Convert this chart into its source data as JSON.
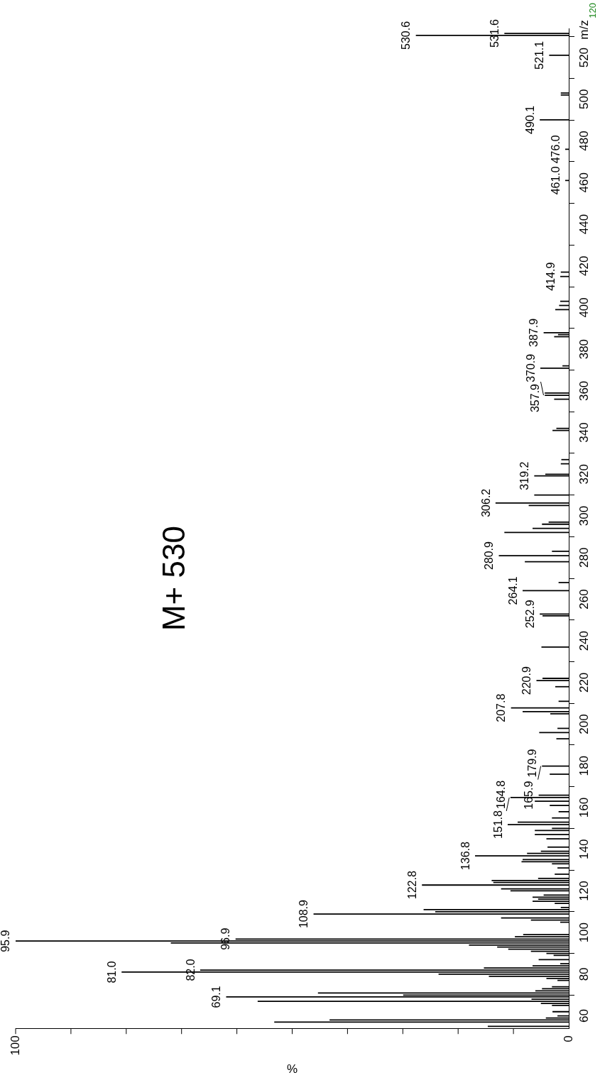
{
  "chart_data": {
    "type": "bar",
    "orientation": "horizontal",
    "color": "#000000",
    "x": [
      55,
      57,
      58,
      59,
      60,
      62,
      65,
      66,
      67,
      68,
      69.1,
      70,
      71,
      72,
      73,
      74,
      77,
      78,
      79,
      80,
      81.0,
      82.0,
      83,
      84,
      85,
      87,
      89,
      90,
      91,
      92,
      93,
      94,
      95,
      95.9,
      96.9,
      98,
      99,
      105,
      106,
      107,
      108.9,
      110,
      111,
      112,
      114,
      115,
      116,
      117,
      118,
      120,
      121,
      122.8,
      124,
      125,
      126,
      128,
      131,
      133,
      134,
      135,
      136.8,
      138,
      139,
      141,
      145,
      147,
      149,
      150,
      151.8,
      153,
      155,
      158,
      161,
      163,
      164.8,
      165.9,
      176,
      179.9,
      193,
      196,
      198,
      205,
      206,
      207.8,
      211,
      218,
      220.9,
      222,
      237,
      252,
      252.9,
      264.1,
      268,
      278,
      280.9,
      283,
      292,
      294,
      296,
      297,
      305,
      306.2,
      310,
      319.2,
      320,
      325,
      327,
      341,
      342,
      356,
      357.9,
      359,
      370.9,
      372,
      386,
      387,
      387.9,
      399,
      401,
      403,
      414.9,
      417,
      461.0,
      476.0,
      490.1,
      502,
      503,
      521.1,
      530.6,
      531.6
    ],
    "values": [
      14.6,
      53.2,
      43.2,
      4.1,
      2.0,
      2.9,
      3.0,
      5.0,
      56.2,
      6.7,
      61.9,
      29.9,
      45.3,
      6.0,
      4.8,
      3.0,
      2.0,
      4.0,
      14.4,
      23.5,
      80.8,
      66.6,
      15.3,
      6.5,
      1.5,
      5.4,
      2.7,
      4.0,
      6.8,
      10.9,
      12.9,
      18.0,
      71.9,
      100,
      60.2,
      9.7,
      8.2,
      1.5,
      6.8,
      12.2,
      46.1,
      24.1,
      26.2,
      1.4,
      2.5,
      6.5,
      5.5,
      6.5,
      4.5,
      10.5,
      12.2,
      26.5,
      13.6,
      13.9,
      5.5,
      2.5,
      2.0,
      3.0,
      8.5,
      8.3,
      16.9,
      7.5,
      5.0,
      3.8,
      4.0,
      6.1,
      6.1,
      3.0,
      11.0,
      9.2,
      3.0,
      1.8,
      3.4,
      6.1,
      10.5,
      5.4,
      3.4,
      4.8,
      2.2,
      5.3,
      2.0,
      3.3,
      8.3,
      10.4,
      1.8,
      2.4,
      5.8,
      4.7,
      4.9,
      4.7,
      5.2,
      8.3,
      1.8,
      7.9,
      12.6,
      3.0,
      11.6,
      6.5,
      4.8,
      3.6,
      7.2,
      13.2,
      6.2,
      6.2,
      4.2,
      1.4,
      1.3,
      2.9,
      2.2,
      2.6,
      4.3,
      4.3,
      5.1,
      1.1,
      2.6,
      1.9,
      4.5,
      2.4,
      1.7,
      1.5,
      1.5,
      1.4,
      0.6,
      0.6,
      5.2,
      1.4,
      1.4,
      3.5,
      27.6,
      11.6
    ],
    "xlim": [
      100,
      0
    ],
    "xticks": [
      100,
      {
        "value": 90,
        "label": null
      },
      {
        "value": 80,
        "label": null
      },
      {
        "value": 70,
        "label": null
      },
      {
        "value": 60,
        "label": null
      },
      {
        "value": 50,
        "label": null
      },
      {
        "value": 40,
        "label": null
      },
      {
        "value": 30,
        "label": null
      },
      {
        "value": 20,
        "label": null
      },
      {
        "value": 10,
        "label": null
      },
      0
    ],
    "ylim": [
      54,
      534
    ],
    "yticks": [
      60,
      80,
      100,
      120,
      140,
      160,
      180,
      200,
      220,
      240,
      260,
      280,
      300,
      320,
      340,
      360,
      380,
      400,
      420,
      440,
      460,
      480,
      500,
      520
    ],
    "xlabel": "%",
    "ylabel": "m/z",
    "annotations": [
      "M+ 530",
      "120",
      {
        "text": "69.1",
        "x": 61.9,
        "y": 69.1
      },
      {
        "text": "81.0",
        "x": 80.8,
        "y": 81.0
      },
      {
        "text": "82.0",
        "x": 66.6,
        "y": 82.0
      },
      {
        "text": "95.9",
        "x": 100,
        "y": 95.9
      },
      {
        "text": "96.9",
        "x": 60.2,
        "y": 96.9
      },
      {
        "text": "108.9",
        "x": 46.1,
        "y": 108.9
      },
      {
        "text": "122.8",
        "x": 26.5,
        "y": 122.8
      },
      {
        "text": "136.8",
        "x": 16.9,
        "y": 136.8
      },
      {
        "text": "151.8",
        "x": 11.0,
        "y": 151.8
      },
      {
        "text": "164.8",
        "x": 10.5,
        "y": 164.8
      },
      {
        "text": "165.9",
        "x": 5.4,
        "y": 165.9
      },
      {
        "text": "179.9",
        "x": 4.8,
        "y": 179.9
      },
      {
        "text": "207.8",
        "x": 10.4,
        "y": 207.8
      },
      {
        "text": "220.9",
        "x": 5.8,
        "y": 220.9
      },
      {
        "text": "252.9",
        "x": 5.2,
        "y": 252.9
      },
      {
        "text": "264.1",
        "x": 8.3,
        "y": 264.1
      },
      {
        "text": "280.9",
        "x": 12.6,
        "y": 280.9
      },
      {
        "text": "306.2",
        "x": 13.2,
        "y": 306.2
      },
      {
        "text": "319.2",
        "x": 6.2,
        "y": 319.2
      },
      {
        "text": "357.9",
        "x": 4.3,
        "y": 357.9
      },
      {
        "text": "370.9",
        "x": 5.1,
        "y": 370.9
      },
      {
        "text": "387.9",
        "x": 4.5,
        "y": 387.9
      },
      {
        "text": "414.9",
        "x": 1.5,
        "y": 414.9
      },
      {
        "text": "461.0",
        "x": 0.6,
        "y": 461.0
      },
      {
        "text": "476.0",
        "x": 0.6,
        "y": 476.0
      },
      {
        "text": "490.1",
        "x": 5.2,
        "y": 490.1
      },
      {
        "text": "521.1",
        "x": 3.5,
        "y": 521.1
      },
      {
        "text": "530.6",
        "x": 27.6,
        "y": 530.6
      },
      {
        "text": "531.6",
        "x": 11.6,
        "y": 531.6
      }
    ],
    "grid": false,
    "legend": false
  }
}
